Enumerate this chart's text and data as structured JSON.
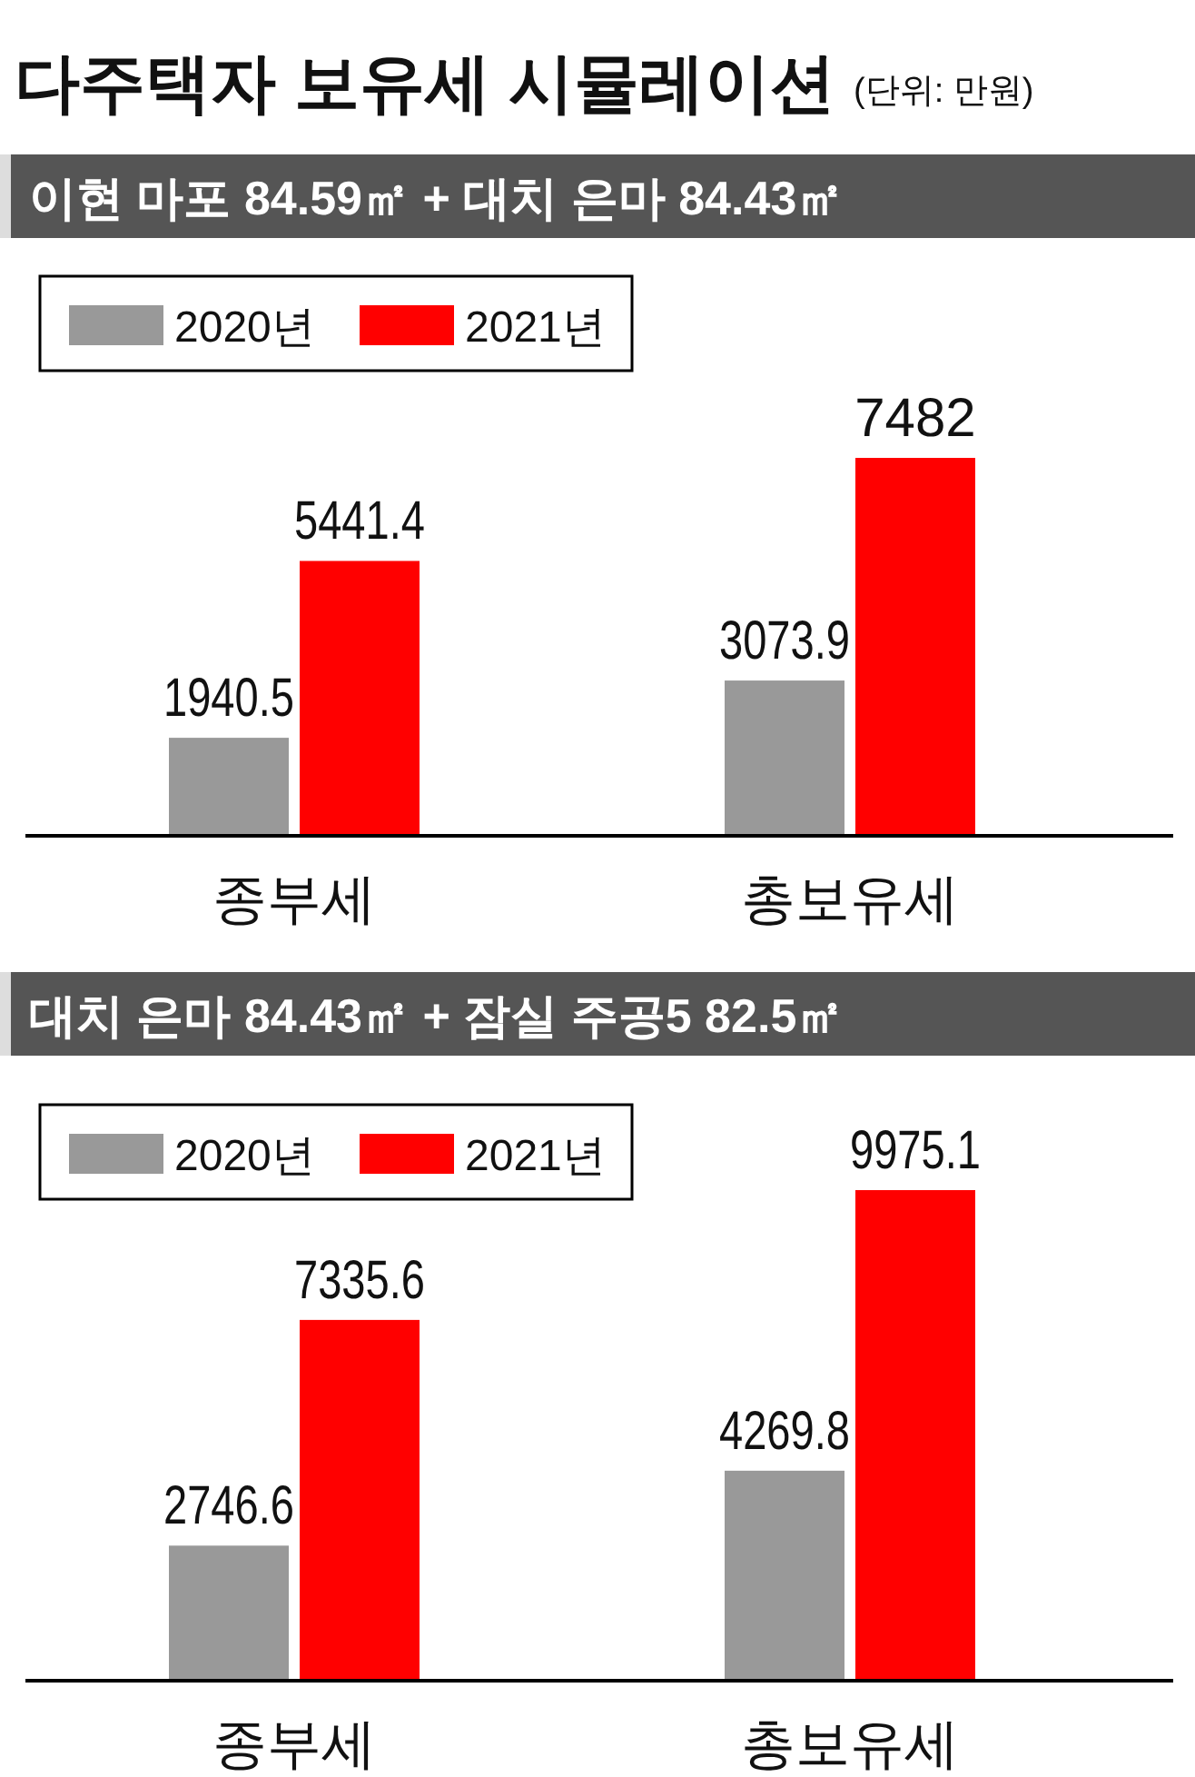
{
  "chart_data": [
    {
      "type": "bar",
      "title": "다주택자 보유세 시뮬레이션",
      "subtitle": "이현 마포 84.59㎡ + 대치 은마 84.43㎡",
      "annotations": [
        "(단위: 만원)"
      ],
      "categories": [
        "종부세",
        "총보유세"
      ],
      "series": [
        {
          "name": "2020년",
          "color": "#999999",
          "values": [
            1940.5,
            3073.9
          ]
        },
        {
          "name": "2021년",
          "color": "#ff0000",
          "values": [
            5441.4,
            7482
          ]
        }
      ],
      "data_labels": true,
      "legend": "top left",
      "grid": false
    },
    {
      "type": "bar",
      "title": "대치 은마 84.43㎡ + 잠실 주공5 82.5㎡",
      "categories": [
        "종부세",
        "총보유세"
      ],
      "series": [
        {
          "name": "2020년",
          "color": "#999999",
          "values": [
            2746.6,
            4269.8
          ]
        },
        {
          "name": "2021년",
          "color": "#ff0000",
          "values": [
            7335.6,
            9975.1
          ]
        }
      ],
      "data_labels": true,
      "legend": "top left",
      "grid": false
    }
  ]
}
